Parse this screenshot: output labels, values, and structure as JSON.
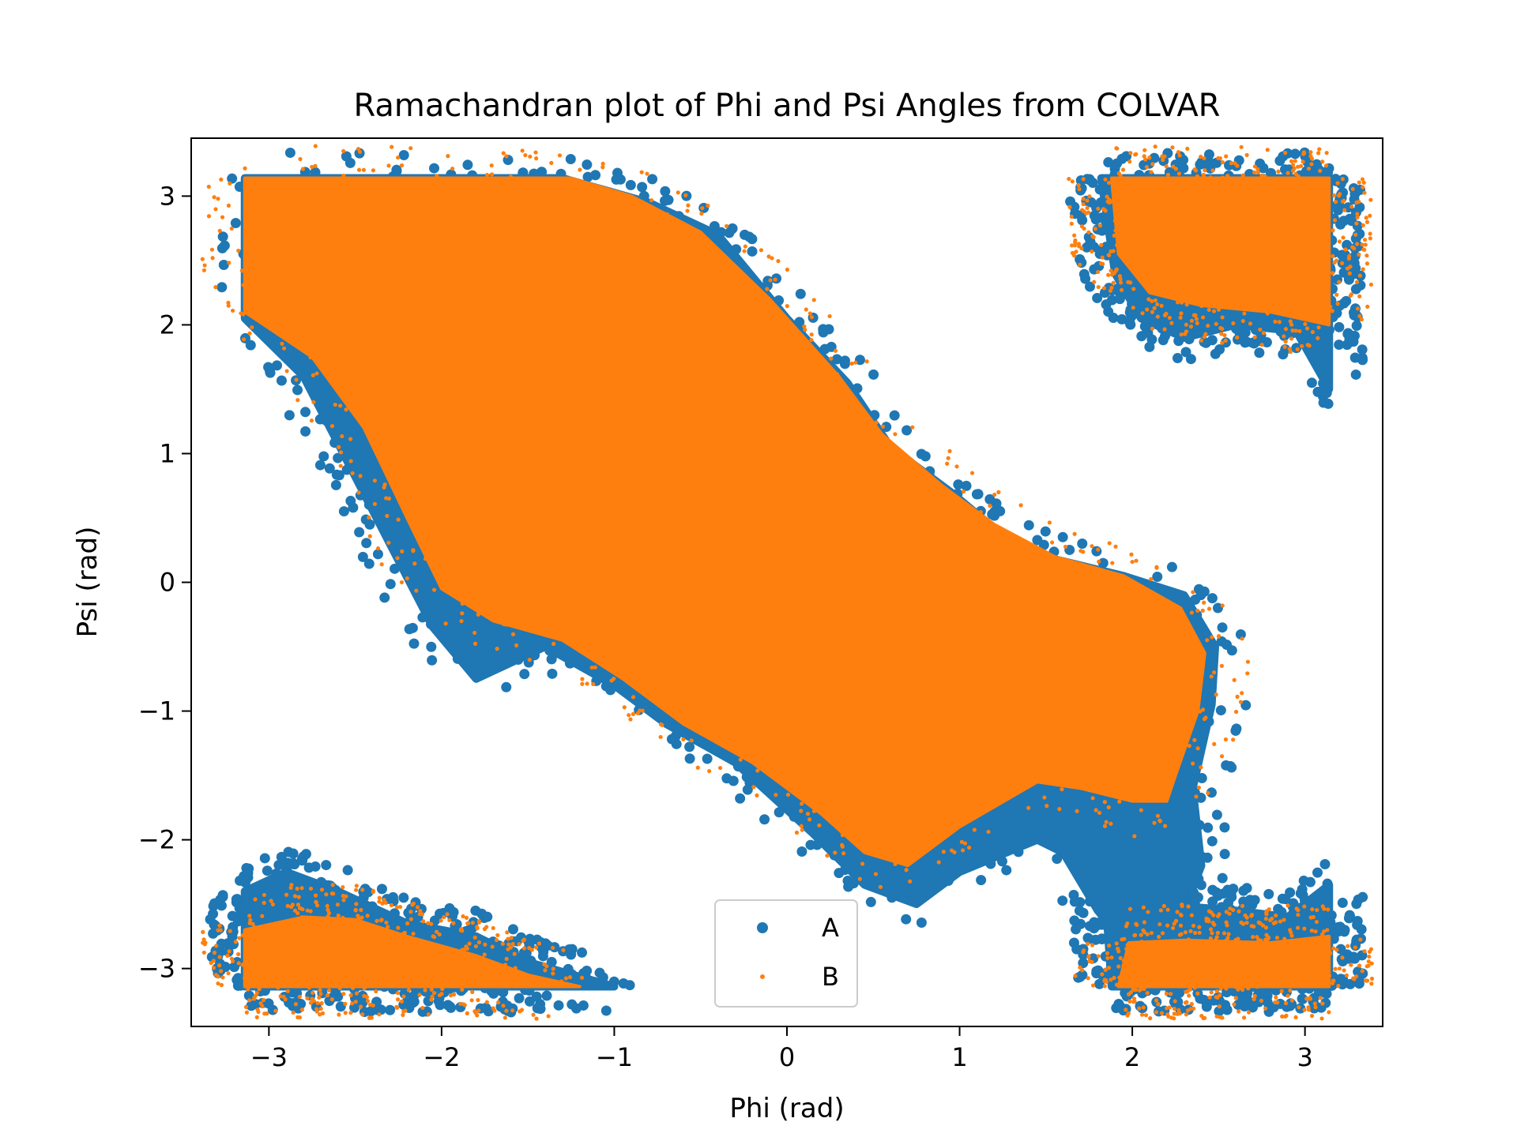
{
  "chart_data": {
    "type": "scatter",
    "title": "Ramachandran plot of Phi and Psi Angles from COLVAR",
    "xlabel": "Phi (rad)",
    "ylabel": "Psi (rad)",
    "xlim": [
      -3.45,
      3.45
    ],
    "ylim": [
      -3.45,
      3.45
    ],
    "xticks": [
      -3,
      -2,
      -1,
      0,
      1,
      2,
      3
    ],
    "yticks": [
      -3,
      -2,
      -1,
      0,
      1,
      2,
      3
    ],
    "xtick_labels": [
      "−3",
      "−2",
      "−1",
      "0",
      "1",
      "2",
      "3"
    ],
    "ytick_labels": [
      "−3",
      "−2",
      "−1",
      "0",
      "1",
      "2",
      "3"
    ],
    "grid": false,
    "legend_position": "lower-center",
    "series": [
      {
        "name": "A",
        "color": "#1f77b4",
        "marker": "large-dot",
        "regions": [
          {
            "kind": "polygon",
            "vertices": [
              [
                -3.14,
                3.14
              ],
              [
                -1.3,
                3.14
              ],
              [
                -0.8,
                2.95
              ],
              [
                -0.4,
                2.7
              ],
              [
                0.0,
                2.05
              ],
              [
                0.35,
                1.55
              ],
              [
                0.6,
                1.05
              ],
              [
                0.95,
                0.7
              ],
              [
                1.2,
                0.42
              ],
              [
                1.55,
                0.18
              ],
              [
                1.95,
                0.05
              ],
              [
                2.3,
                -0.1
              ],
              [
                2.48,
                -0.5
              ],
              [
                2.46,
                -0.95
              ],
              [
                2.35,
                -1.6
              ],
              [
                2.4,
                -2.2
              ],
              [
                2.3,
                -2.55
              ],
              [
                2.2,
                -2.75
              ],
              [
                1.95,
                -2.8
              ],
              [
                1.8,
                -2.55
              ],
              [
                1.6,
                -2.1
              ],
              [
                1.45,
                -2.0
              ],
              [
                1.0,
                -2.25
              ],
              [
                0.75,
                -2.5
              ],
              [
                0.45,
                -2.35
              ],
              [
                0.15,
                -1.95
              ],
              [
                -0.3,
                -1.4
              ],
              [
                -0.7,
                -1.1
              ],
              [
                -1.0,
                -0.8
              ],
              [
                -1.4,
                -0.5
              ],
              [
                -1.8,
                -0.75
              ],
              [
                -2.05,
                -0.35
              ],
              [
                -2.3,
                0.3
              ],
              [
                -2.55,
                0.95
              ],
              [
                -2.8,
                1.6
              ],
              [
                -3.14,
                2.05
              ]
            ]
          },
          {
            "kind": "polygon",
            "vertices": [
              [
                1.82,
                3.14
              ],
              [
                3.14,
                3.14
              ],
              [
                3.14,
                1.5
              ],
              [
                2.95,
                1.95
              ],
              [
                2.6,
                2.0
              ],
              [
                2.3,
                1.9
              ],
              [
                2.05,
                2.05
              ],
              [
                1.9,
                2.4
              ]
            ]
          },
          {
            "kind": "polygon",
            "vertices": [
              [
                -3.14,
                -2.4
              ],
              [
                -2.9,
                -2.25
              ],
              [
                -2.6,
                -2.4
              ],
              [
                -2.2,
                -2.65
              ],
              [
                -1.8,
                -2.75
              ],
              [
                -1.5,
                -2.95
              ],
              [
                -1.0,
                -3.14
              ],
              [
                -3.14,
                -3.14
              ]
            ]
          },
          {
            "kind": "polygon",
            "vertices": [
              [
                1.88,
                -3.14
              ],
              [
                1.85,
                -2.55
              ],
              [
                2.15,
                -2.5
              ],
              [
                2.6,
                -2.55
              ],
              [
                2.9,
                -2.6
              ],
              [
                3.14,
                -2.35
              ],
              [
                3.14,
                -3.14
              ]
            ]
          }
        ]
      },
      {
        "name": "B",
        "color": "#ff7f0e",
        "marker": "small-dot",
        "regions": [
          {
            "kind": "polygon",
            "vertices": [
              [
                -3.14,
                3.14
              ],
              [
                -1.25,
                3.14
              ],
              [
                -0.9,
                3.0
              ],
              [
                -0.5,
                2.72
              ],
              [
                -0.1,
                2.2
              ],
              [
                0.3,
                1.6
              ],
              [
                0.55,
                1.15
              ],
              [
                0.9,
                0.75
              ],
              [
                1.2,
                0.45
              ],
              [
                1.55,
                0.2
              ],
              [
                1.95,
                0.05
              ],
              [
                2.28,
                -0.2
              ],
              [
                2.42,
                -0.55
              ],
              [
                2.38,
                -1.0
              ],
              [
                2.25,
                -1.5
              ],
              [
                2.2,
                -1.7
              ],
              [
                2.0,
                -1.7
              ],
              [
                1.7,
                -1.6
              ],
              [
                1.45,
                -1.55
              ],
              [
                1.0,
                -1.9
              ],
              [
                0.7,
                -2.2
              ],
              [
                0.45,
                -2.1
              ],
              [
                0.2,
                -1.8
              ],
              [
                -0.2,
                -1.4
              ],
              [
                -0.6,
                -1.1
              ],
              [
                -0.95,
                -0.75
              ],
              [
                -1.3,
                -0.45
              ],
              [
                -1.7,
                -0.3
              ],
              [
                -2.0,
                -0.05
              ],
              [
                -2.2,
                0.5
              ],
              [
                -2.45,
                1.2
              ],
              [
                -2.75,
                1.75
              ],
              [
                -3.14,
                2.1
              ]
            ]
          },
          {
            "kind": "polygon",
            "vertices": [
              [
                1.88,
                3.14
              ],
              [
                3.14,
                3.14
              ],
              [
                3.14,
                2.0
              ],
              [
                2.8,
                2.1
              ],
              [
                2.4,
                2.15
              ],
              [
                2.1,
                2.25
              ],
              [
                1.92,
                2.55
              ]
            ]
          },
          {
            "kind": "polygon",
            "vertices": [
              [
                -3.14,
                -2.7
              ],
              [
                -2.8,
                -2.6
              ],
              [
                -2.5,
                -2.62
              ],
              [
                -2.2,
                -2.75
              ],
              [
                -1.8,
                -2.9
              ],
              [
                -1.5,
                -3.05
              ],
              [
                -1.2,
                -3.14
              ],
              [
                -3.14,
                -3.14
              ]
            ]
          },
          {
            "kind": "polygon",
            "vertices": [
              [
                1.92,
                -3.14
              ],
              [
                1.98,
                -2.8
              ],
              [
                2.3,
                -2.78
              ],
              [
                2.8,
                -2.8
              ],
              [
                3.14,
                -2.75
              ],
              [
                3.14,
                -3.14
              ]
            ]
          }
        ]
      }
    ],
    "notes_visible": "dense overlapping point clouds; B (orange) drawn on top of A (blue)"
  }
}
